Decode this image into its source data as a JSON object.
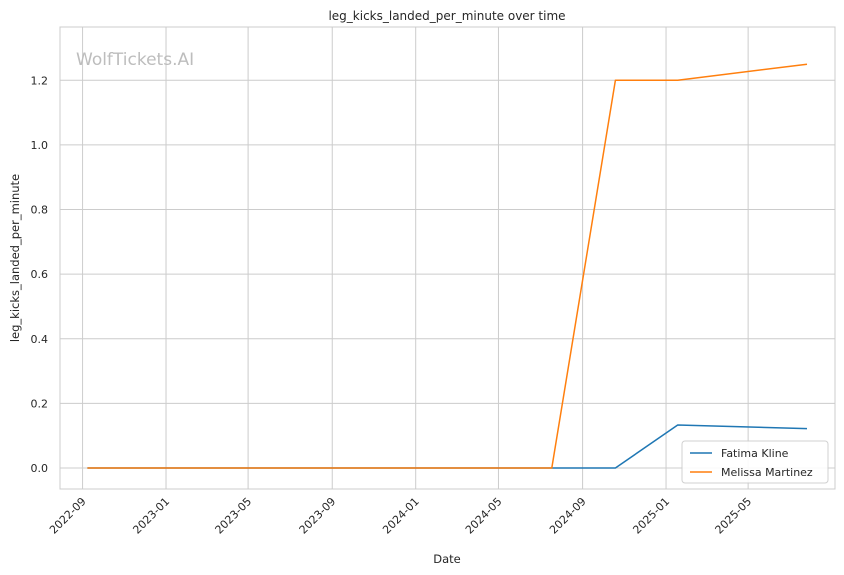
{
  "chart_data": {
    "type": "line",
    "title": "leg_kicks_landed_per_minute over time",
    "xlabel": "Date",
    "ylabel": "leg_kicks_landed_per_minute",
    "watermark": "WolfTickets.AI",
    "x_ticks": [
      "2022-09",
      "2023-01",
      "2023-05",
      "2023-09",
      "2024-01",
      "2024-05",
      "2024-09",
      "2025-01",
      "2025-05"
    ],
    "y_ticks": [
      "0.0",
      "0.2",
      "0.4",
      "0.6",
      "0.8",
      "1.0",
      "1.2"
    ],
    "xlim": [
      "2022-07-30",
      "2025-09-05"
    ],
    "ylim": [
      -0.065,
      1.365
    ],
    "grid": true,
    "legend_position": "lower-right",
    "series": [
      {
        "name": "Fatima Kline",
        "color": "#1f77b4",
        "points": [
          {
            "x": "2022-09-08",
            "y": 0.0
          },
          {
            "x": "2024-07-18",
            "y": 0.0
          },
          {
            "x": "2024-10-19",
            "y": 0.0
          },
          {
            "x": "2025-01-18",
            "y": 0.133
          },
          {
            "x": "2025-07-26",
            "y": 0.122
          }
        ]
      },
      {
        "name": "Melissa Martinez",
        "color": "#ff7f0e",
        "points": [
          {
            "x": "2022-09-08",
            "y": 0.0
          },
          {
            "x": "2024-07-18",
            "y": 0.0
          },
          {
            "x": "2024-10-19",
            "y": 1.2
          },
          {
            "x": "2025-01-18",
            "y": 1.2
          },
          {
            "x": "2025-07-26",
            "y": 1.25
          }
        ]
      }
    ]
  }
}
